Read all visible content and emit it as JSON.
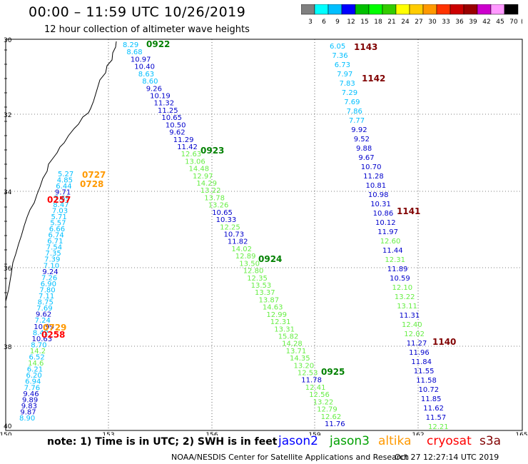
{
  "title": "00:00 – 11:59 UTC 10/26/2019",
  "subtitle": "12 hour collection of altimeter wave heights",
  "colorbar": {
    "unit_label": "(ft)",
    "levels": [
      "3",
      "6",
      "9",
      "12",
      "15",
      "18",
      "21",
      "24",
      "27",
      "30",
      "33",
      "36",
      "39",
      "42",
      "45",
      "70"
    ],
    "colors": [
      "#808080",
      "#00ffff",
      "#00bfff",
      "#0000ff",
      "#00c000",
      "#00ff00",
      "#33cc00",
      "#ffff00",
      "#ffcc00",
      "#ff9900",
      "#ff3300",
      "#cc0000",
      "#990000",
      "#cc00cc",
      "#ff99ff",
      "#000000"
    ]
  },
  "map": {
    "lon_ticks": [
      "150",
      "153",
      "156",
      "159",
      "162",
      "165"
    ],
    "lat_ticks": [
      "30",
      "32",
      "34",
      "36",
      "38",
      "40"
    ]
  },
  "pass_labels": [
    {
      "text": "0922",
      "color": "#008000"
    },
    {
      "text": "0923",
      "color": "#008000"
    },
    {
      "text": "0924",
      "color": "#008000"
    },
    {
      "text": "0925",
      "color": "#008000"
    },
    {
      "text": "1143",
      "color": "#800000"
    },
    {
      "text": "1142",
      "color": "#800000"
    },
    {
      "text": "1141",
      "color": "#800000"
    },
    {
      "text": "1140",
      "color": "#800000"
    },
    {
      "text": "0727",
      "color": "#ff9900"
    },
    {
      "text": "0728",
      "color": "#ff9900"
    },
    {
      "text": "0729",
      "color": "#ff9900"
    },
    {
      "text": "0257",
      "color": "#ff0000"
    },
    {
      "text": "0258",
      "color": "#ff0000"
    }
  ],
  "track_a_values": [
    [
      "8.29",
      "#00bfff"
    ],
    [
      "8.68",
      "#00bfff"
    ],
    [
      "10.97",
      "#0000cc"
    ],
    [
      "10.40",
      "#0000cc"
    ],
    [
      "8.63",
      "#00bfff"
    ],
    [
      "8.60",
      "#00bfff"
    ],
    [
      "9.26",
      "#0000cc"
    ],
    [
      "10.19",
      "#0000cc"
    ],
    [
      "11.32",
      "#0000cc"
    ],
    [
      "11.25",
      "#0000cc"
    ],
    [
      "10.65",
      "#0000cc"
    ],
    [
      "10.50",
      "#0000cc"
    ],
    [
      "9.62",
      "#0000cc"
    ],
    [
      "11.29",
      "#0000cc"
    ],
    [
      "11.42",
      "#0000cc"
    ],
    [
      "12.63",
      "#66ee44"
    ],
    [
      "13.06",
      "#66ee44"
    ],
    [
      "14.48",
      "#66ee44"
    ],
    [
      "12.97",
      "#66ee44"
    ],
    [
      "14.29",
      "#66ee44"
    ],
    [
      "13.22",
      "#66ee44"
    ],
    [
      "13.78",
      "#66ee44"
    ],
    [
      "13.26",
      "#66ee44"
    ],
    [
      "10.65",
      "#0000cc"
    ],
    [
      "10.33",
      "#0000cc"
    ],
    [
      "12.25",
      "#66ee44"
    ],
    [
      "10.73",
      "#0000cc"
    ],
    [
      "11.82",
      "#0000cc"
    ],
    [
      "14.02",
      "#66ee44"
    ],
    [
      "12.89",
      "#66ee44"
    ],
    [
      "13.50",
      "#66ee44"
    ],
    [
      "12.80",
      "#66ee44"
    ],
    [
      "12.35",
      "#66ee44"
    ],
    [
      "13.53",
      "#66ee44"
    ],
    [
      "13.37",
      "#66ee44"
    ],
    [
      "13.87",
      "#66ee44"
    ],
    [
      "14.63",
      "#66ee44"
    ],
    [
      "12.99",
      "#66ee44"
    ],
    [
      "12.31",
      "#66ee44"
    ],
    [
      "13.31",
      "#66ee44"
    ],
    [
      "15.82",
      "#66ee44"
    ],
    [
      "14.28",
      "#66ee44"
    ],
    [
      "13.71",
      "#66ee44"
    ],
    [
      "14.35",
      "#66ee44"
    ],
    [
      "13.20",
      "#66ee44"
    ],
    [
      "12.53",
      "#66ee44"
    ],
    [
      "11.78",
      "#0000cc"
    ],
    [
      "12.41",
      "#66ee44"
    ],
    [
      "12.56",
      "#66ee44"
    ],
    [
      "13.22",
      "#66ee44"
    ],
    [
      "12.79",
      "#66ee44"
    ],
    [
      "12.62",
      "#66ee44"
    ],
    [
      "11.76",
      "#0000cc"
    ]
  ],
  "track_b_values": [
    [
      "6.05",
      "#00bfff"
    ],
    [
      "7.36",
      "#00bfff"
    ],
    [
      "6.73",
      "#00bfff"
    ],
    [
      "7.97",
      "#00bfff"
    ],
    [
      "7.83",
      "#00bfff"
    ],
    [
      "7.29",
      "#00bfff"
    ],
    [
      "7.69",
      "#00bfff"
    ],
    [
      "7.86",
      "#00bfff"
    ],
    [
      "7.77",
      "#00bfff"
    ],
    [
      "9.92",
      "#0000cc"
    ],
    [
      "9.52",
      "#0000cc"
    ],
    [
      "9.88",
      "#0000cc"
    ],
    [
      "9.67",
      "#0000cc"
    ],
    [
      "10.70",
      "#0000cc"
    ],
    [
      "11.28",
      "#0000cc"
    ],
    [
      "10.81",
      "#0000cc"
    ],
    [
      "10.98",
      "#0000cc"
    ],
    [
      "10.31",
      "#0000cc"
    ],
    [
      "10.86",
      "#0000cc"
    ],
    [
      "10.12",
      "#0000cc"
    ],
    [
      "11.97",
      "#0000cc"
    ],
    [
      "12.60",
      "#66ee44"
    ],
    [
      "11.44",
      "#0000cc"
    ],
    [
      "12.31",
      "#66ee44"
    ],
    [
      "11.89",
      "#0000cc"
    ],
    [
      "10.59",
      "#0000cc"
    ],
    [
      "12.10",
      "#66ee44"
    ],
    [
      "13.22",
      "#66ee44"
    ],
    [
      "13.11",
      "#66ee44"
    ],
    [
      "11.31",
      "#0000cc"
    ],
    [
      "12.40",
      "#66ee44"
    ],
    [
      "12.02",
      "#66ee44"
    ],
    [
      "11.27",
      "#0000cc"
    ],
    [
      "11.96",
      "#0000cc"
    ],
    [
      "11.84",
      "#0000cc"
    ],
    [
      "11.55",
      "#0000cc"
    ],
    [
      "11.58",
      "#0000cc"
    ],
    [
      "10.72",
      "#0000cc"
    ],
    [
      "11.85",
      "#0000cc"
    ],
    [
      "11.62",
      "#0000cc"
    ],
    [
      "11.57",
      "#0000cc"
    ],
    [
      "12.21",
      "#66ee44"
    ]
  ],
  "coastal_values": [
    [
      "5.27",
      "#00bfff"
    ],
    [
      "4.85",
      "#00bfff"
    ],
    [
      "6.44",
      "#00bfff"
    ],
    [
      "9.71",
      "#0000cc"
    ],
    [
      "7.69",
      "#00bfff"
    ],
    [
      "8.47",
      "#00bfff"
    ],
    [
      "7.03",
      "#00bfff"
    ],
    [
      "5.71",
      "#00bfff"
    ],
    [
      "5.57",
      "#00bfff"
    ],
    [
      "6.66",
      "#00bfff"
    ],
    [
      "6.74",
      "#00bfff"
    ],
    [
      "6.71",
      "#00bfff"
    ],
    [
      "7.54",
      "#00bfff"
    ],
    [
      "7.35",
      "#00bfff"
    ],
    [
      "7.39",
      "#00bfff"
    ],
    [
      "7.10",
      "#00bfff"
    ],
    [
      "9.24",
      "#0000cc"
    ],
    [
      "7.26",
      "#00bfff"
    ],
    [
      "6.90",
      "#00bfff"
    ],
    [
      "7.80",
      "#00bfff"
    ],
    [
      "7.11",
      "#00bfff"
    ],
    [
      "8.75",
      "#00bfff"
    ],
    [
      "7.69",
      "#00bfff"
    ],
    [
      "9.62",
      "#0000cc"
    ],
    [
      "7.24",
      "#00bfff"
    ],
    [
      "10.99",
      "#0000cc"
    ],
    [
      "8.42",
      "#00bfff"
    ],
    [
      "10.63",
      "#0000cc"
    ],
    [
      "8.70",
      "#00bfff"
    ],
    [
      "14.2",
      "#66ee44"
    ],
    [
      "6.52",
      "#00bfff"
    ],
    [
      "14.6",
      "#66ee44"
    ],
    [
      "6.21",
      "#00bfff"
    ],
    [
      "6.20",
      "#00bfff"
    ],
    [
      "6.94",
      "#00bfff"
    ],
    [
      "7.76",
      "#00bfff"
    ],
    [
      "9.46",
      "#0000cc"
    ],
    [
      "9.89",
      "#0000cc"
    ],
    [
      "9.83",
      "#0000cc"
    ],
    [
      "9.87",
      "#0000cc"
    ],
    [
      "8.90",
      "#00bfff"
    ]
  ],
  "satellites": [
    {
      "name": "jason2",
      "color": "#0000ff"
    },
    {
      "name": "jason3",
      "color": "#00a000"
    },
    {
      "name": "altika",
      "color": "#ff9900"
    },
    {
      "name": "cryosat",
      "color": "#ff0000"
    },
    {
      "name": "s3a",
      "color": "#800000"
    }
  ],
  "footer": {
    "note": "note: 1) Time is in UTC; 2) SWH is in feet",
    "credit": "NOAA/NESDIS Center for Satellite Applications and Research",
    "timestamp": "Oct 27 12:27:14 UTC 2019"
  }
}
